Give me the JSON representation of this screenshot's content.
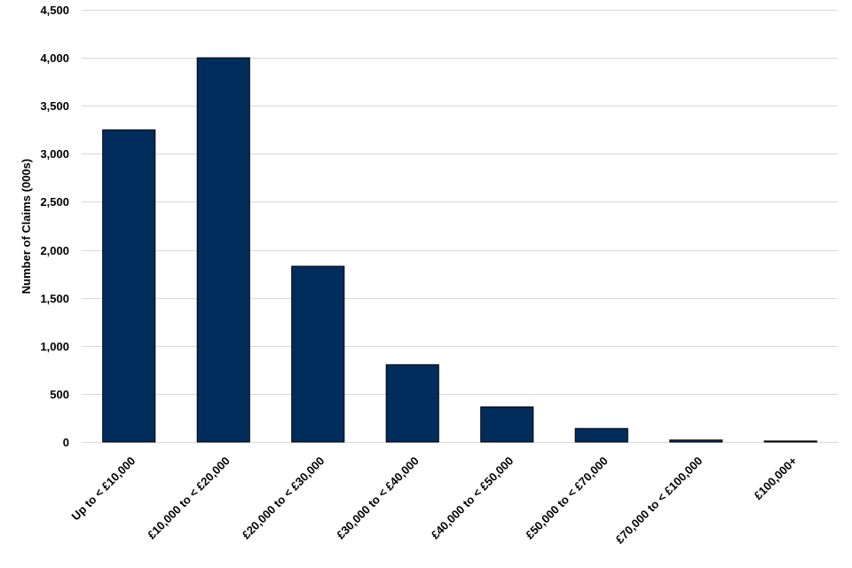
{
  "chart_data": {
    "type": "bar",
    "categories": [
      "Up to < £10,000",
      "£10,000 to < £20,000",
      "£20,000 to < £30,000",
      "£30,000 to < £40,000",
      "£40,000 to < £50,000",
      "£50,000 to < £70,000",
      "£70,000 to < £100,000",
      "£100,000+"
    ],
    "values": [
      3250,
      4000,
      1830,
      805,
      365,
      140,
      20,
      10
    ],
    "ylabel": "Number of Claims (000s)",
    "ylim": [
      0,
      4500
    ],
    "yticks": [
      0,
      500,
      1000,
      1500,
      2000,
      2500,
      3000,
      3500,
      4000,
      4500
    ],
    "ytick_labels": [
      "0",
      "500",
      "1,000",
      "1,500",
      "2,000",
      "2,500",
      "3,000",
      "3,500",
      "4,000",
      "4,500"
    ],
    "grid": true,
    "legend": "none",
    "bar_color": "#002d5c"
  }
}
